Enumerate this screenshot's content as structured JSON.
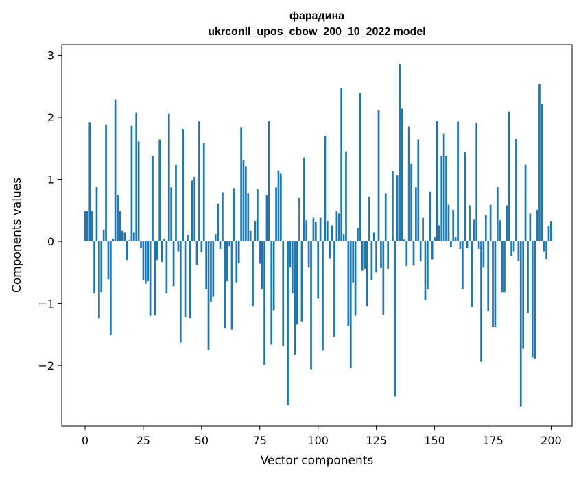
{
  "chart_data": {
    "type": "bar",
    "title_lines": [
      "фарадина",
      "ukrconll_upos_cbow_200_10_2022 model"
    ],
    "xlabel": "Vector components",
    "ylabel": "Components values",
    "xlim": [
      -10,
      209
    ],
    "ylim": [
      -2.97,
      3.17
    ],
    "xticks": [
      0,
      25,
      50,
      75,
      100,
      125,
      150,
      175,
      200
    ],
    "xtick_labels": [
      "0",
      "25",
      "50",
      "75",
      "100",
      "125",
      "150",
      "175",
      "200"
    ],
    "yticks": [
      -2,
      -1,
      0,
      1,
      2,
      3
    ],
    "ytick_labels": [
      "−2",
      "−1",
      "0",
      "1",
      "2",
      "3"
    ],
    "grid": false,
    "bar_color": "#1f77b4",
    "x_start": 0,
    "values": [
      0.49,
      0.49,
      1.92,
      0.49,
      -0.84,
      0.88,
      -1.24,
      -0.82,
      0.19,
      1.88,
      -0.61,
      -1.5,
      0.04,
      2.28,
      0.75,
      0.49,
      0.17,
      0.14,
      -0.3,
      0.02,
      1.86,
      0.14,
      2.07,
      1.61,
      -0.11,
      -0.62,
      -0.68,
      -0.64,
      -1.2,
      1.37,
      -1.19,
      -0.3,
      1.64,
      -0.33,
      0.04,
      -0.84,
      2.06,
      0.87,
      -0.72,
      1.24,
      -0.16,
      -1.63,
      1.81,
      -1.22,
      0.11,
      -1.24,
      0.98,
      1.04,
      -0.38,
      1.93,
      -0.18,
      1.59,
      -0.77,
      -1.75,
      -0.97,
      -0.89,
      0.12,
      0.61,
      -0.12,
      0.79,
      -1.4,
      -0.64,
      -0.08,
      -1.42,
      0.86,
      -0.66,
      -0.35,
      1.84,
      1.31,
      1.21,
      0.77,
      0.17,
      -1.04,
      0.33,
      0.84,
      -0.36,
      -0.77,
      -1.99,
      0.74,
      1.94,
      -1.66,
      -1.11,
      0.87,
      1.14,
      1.09,
      -1.68,
      0.01,
      -2.64,
      -0.42,
      -0.84,
      -1.82,
      -1.34,
      0.7,
      -1.29,
      1.35,
      0.34,
      -0.42,
      -2.06,
      0.38,
      0.31,
      -0.92,
      0.38,
      -1.76,
      1.7,
      0.33,
      -0.27,
      0.26,
      -1.54,
      0.49,
      0.45,
      2.47,
      0.12,
      1.45,
      -1.36,
      -2.04,
      -0.66,
      -1.2,
      0.22,
      2.39,
      -0.47,
      -0.44,
      -1.04,
      0.72,
      -0.62,
      0.14,
      -0.5,
      2.11,
      -0.43,
      -1.18,
      0.77,
      -0.44,
      0.01,
      1.13,
      -2.5,
      1.07,
      2.86,
      2.14,
      0.03,
      -0.4,
      1.85,
      1.25,
      -0.39,
      0.87,
      1.64,
      -0.32,
      0.38,
      -0.94,
      -0.77,
      0.8,
      -0.29,
      0.07,
      1.94,
      0.26,
      1.37,
      1.74,
      1.38,
      0.59,
      -0.09,
      0.51,
      0.07,
      1.93,
      -0.12,
      -0.77,
      1.44,
      -0.11,
      0.58,
      -1.05,
      0.35,
      1.9,
      -0.12,
      -1.94,
      -0.42,
      0.42,
      -1.12,
      0.59,
      -1.38,
      -1.38,
      0.88,
      0.34,
      -0.82,
      -0.82,
      0.58,
      2.09,
      -0.24,
      -0.16,
      1.65,
      -0.31,
      -2.66,
      -1.73,
      1.24,
      -1.15,
      0.45,
      -1.87,
      -1.89,
      0.51,
      2.53,
      2.21,
      -0.16,
      -0.28,
      0.25,
      0.32
    ]
  }
}
